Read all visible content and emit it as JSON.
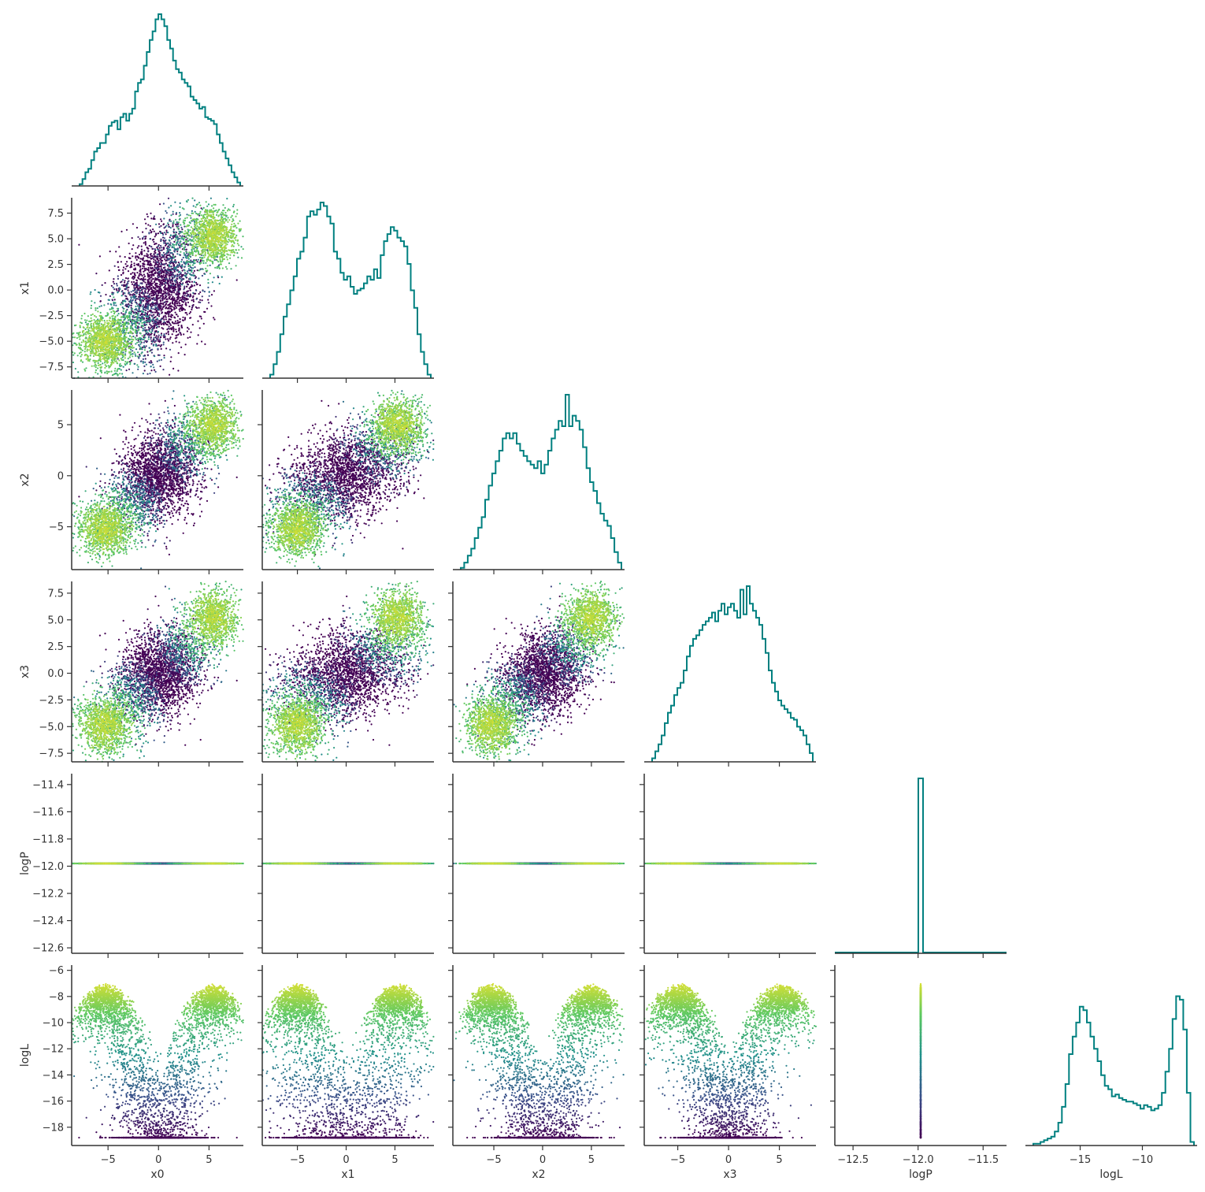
{
  "chart_data": {
    "type": "corner",
    "variables": [
      "x0",
      "x1",
      "x2",
      "x3",
      "logP",
      "logL"
    ],
    "axis_labels": {
      "x": [
        "x0",
        "x1",
        "x2",
        "x3",
        "logP",
        "logL"
      ],
      "y": [
        "",
        "x1",
        "x2",
        "x3",
        "logP",
        "logL"
      ]
    },
    "ranges": {
      "x0": [
        -8.6,
        8.4
      ],
      "x1": [
        -8.6,
        9.0
      ],
      "x2": [
        -9.2,
        8.4
      ],
      "x3": [
        -8.3,
        8.6
      ],
      "logP": [
        -12.64,
        -11.32
      ],
      "logL": [
        -19.4,
        -5.6
      ]
    },
    "ticks": {
      "x0": {
        "values": [
          -5,
          0,
          5
        ],
        "labels": [
          "−5",
          "0",
          "5"
        ]
      },
      "x1": {
        "values": [
          -7.5,
          -5.0,
          -2.5,
          0.0,
          2.5,
          5.0,
          7.5
        ],
        "labels": [
          "−7.5",
          "−5.0",
          "−2.5",
          "0.0",
          "2.5",
          "5.0",
          "7.5"
        ],
        "xvalues": [
          -5,
          0,
          5
        ],
        "xlabels": [
          "−5",
          "0",
          "5"
        ]
      },
      "x2": {
        "values": [
          -5,
          0,
          5
        ],
        "labels": [
          "−5",
          "0",
          "5"
        ]
      },
      "x3": {
        "values": [
          -7.5,
          -5.0,
          -2.5,
          0.0,
          2.5,
          5.0,
          7.5
        ],
        "labels": [
          "−7.5",
          "−5.0",
          "−2.5",
          "0.0",
          "2.5",
          "5.0",
          "7.5"
        ],
        "xvalues": [
          -5,
          0,
          5
        ],
        "xlabels": [
          "−5",
          "0",
          "5"
        ]
      },
      "logP": {
        "values": [
          -12.6,
          -12.4,
          -12.2,
          -12.0,
          -11.8,
          -11.6,
          -11.4
        ],
        "labels": [
          "−12.6",
          "−12.4",
          "−12.2",
          "−12.0",
          "−11.8",
          "−11.6",
          "−11.4"
        ],
        "xvalues": [
          -12.5,
          -12.0,
          -11.5
        ],
        "xlabels": [
          "−12.5",
          "−12.0",
          "−11.5"
        ]
      },
      "logL": {
        "values": [
          -18,
          -16,
          -14,
          -12,
          -10,
          -8,
          -6
        ],
        "labels": [
          "−18",
          "−16",
          "−14",
          "−12",
          "−10",
          "−8",
          "−6"
        ],
        "xvalues": [
          -15,
          -10
        ],
        "xlabels": [
          "−15",
          "−10"
        ]
      }
    },
    "logP_constant": -11.98,
    "histograms": {
      "x0": [
        0.01,
        0.04,
        0.08,
        0.1,
        0.15,
        0.2,
        0.22,
        0.25,
        0.25,
        0.3,
        0.35,
        0.37,
        0.38,
        0.33,
        0.4,
        0.42,
        0.38,
        0.42,
        0.45,
        0.55,
        0.6,
        0.62,
        0.7,
        0.78,
        0.85,
        0.9,
        0.97,
        1.0,
        0.97,
        0.93,
        0.85,
        0.8,
        0.73,
        0.68,
        0.66,
        0.62,
        0.6,
        0.58,
        0.52,
        0.5,
        0.48,
        0.45,
        0.46,
        0.4,
        0.39,
        0.38,
        0.36,
        0.3,
        0.25,
        0.2,
        0.16,
        0.12,
        0.08,
        0.05,
        0.02
      ],
      "x1": [
        0.02,
        0.08,
        0.15,
        0.25,
        0.35,
        0.42,
        0.5,
        0.58,
        0.68,
        0.72,
        0.8,
        0.92,
        0.95,
        0.93,
        0.96,
        1.0,
        0.98,
        0.92,
        0.88,
        0.72,
        0.68,
        0.6,
        0.56,
        0.58,
        0.52,
        0.48,
        0.5,
        0.51,
        0.54,
        0.58,
        0.56,
        0.62,
        0.57,
        0.7,
        0.78,
        0.82,
        0.86,
        0.84,
        0.8,
        0.78,
        0.75,
        0.65,
        0.5,
        0.4,
        0.25,
        0.15,
        0.08,
        0.02
      ],
      "x2": [
        0.01,
        0.04,
        0.08,
        0.12,
        0.18,
        0.24,
        0.3,
        0.4,
        0.48,
        0.55,
        0.62,
        0.68,
        0.75,
        0.78,
        0.75,
        0.78,
        0.72,
        0.68,
        0.65,
        0.62,
        0.6,
        0.58,
        0.62,
        0.55,
        0.6,
        0.68,
        0.75,
        0.8,
        0.85,
        0.82,
        1.0,
        0.82,
        0.88,
        0.85,
        0.8,
        0.7,
        0.58,
        0.5,
        0.45,
        0.38,
        0.32,
        0.28,
        0.25,
        0.18,
        0.1,
        0.04
      ],
      "x3": [
        0.02,
        0.06,
        0.1,
        0.15,
        0.22,
        0.28,
        0.32,
        0.38,
        0.42,
        0.45,
        0.52,
        0.6,
        0.66,
        0.7,
        0.72,
        0.75,
        0.78,
        0.8,
        0.82,
        0.85,
        0.8,
        0.86,
        0.9,
        0.84,
        0.88,
        0.9,
        0.86,
        0.82,
        0.98,
        0.84,
        1.0,
        0.9,
        0.86,
        0.82,
        0.78,
        0.7,
        0.62,
        0.52,
        0.45,
        0.4,
        0.35,
        0.32,
        0.3,
        0.28,
        0.25,
        0.24,
        0.2,
        0.18,
        0.15,
        0.1,
        0.05
      ],
      "logL": [
        0.01,
        0.01,
        0.02,
        0.03,
        0.04,
        0.05,
        0.08,
        0.13,
        0.22,
        0.35,
        0.52,
        0.62,
        0.7,
        0.79,
        0.77,
        0.7,
        0.62,
        0.55,
        0.48,
        0.4,
        0.34,
        0.32,
        0.28,
        0.29,
        0.27,
        0.26,
        0.25,
        0.25,
        0.24,
        0.23,
        0.21,
        0.23,
        0.22,
        0.2,
        0.21,
        0.23,
        0.3,
        0.42,
        0.55,
        0.72,
        0.85,
        0.83,
        0.66,
        0.3,
        0.02
      ]
    },
    "colormap": {
      "name": "viridis",
      "by": "logL",
      "stops": [
        "#440154",
        "#3b528b",
        "#21918c",
        "#5ec962",
        "#fde725"
      ]
    },
    "colors": {
      "histogram_line": "#008080",
      "axis": "#333333"
    }
  }
}
